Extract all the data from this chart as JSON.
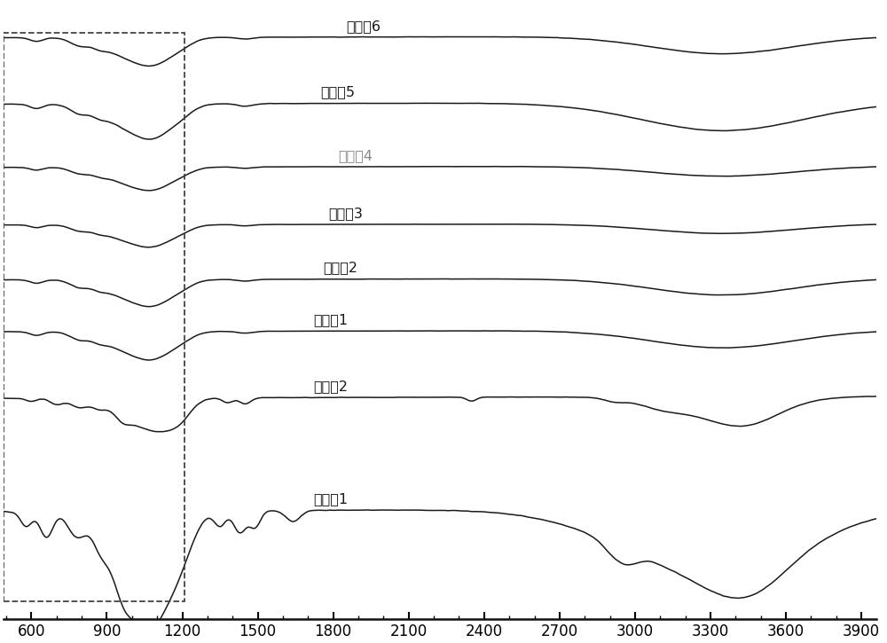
{
  "x_min": 490,
  "x_max": 3960,
  "x_ticks": [
    600,
    900,
    1200,
    1500,
    1800,
    2100,
    2400,
    2700,
    3000,
    3300,
    3600,
    3900
  ],
  "labels": [
    "实施例6",
    "实施例5",
    "实施例4",
    "实施例3",
    "实施例2",
    "实施例1",
    "对比例2",
    "对比例1"
  ],
  "label4_color": "#888888",
  "line_color": "#1a1a1a",
  "bg_color": "#ffffff",
  "offsets": [
    6.8,
    5.65,
    4.55,
    3.55,
    2.6,
    1.7,
    0.55,
    -1.4
  ],
  "figsize": [
    10.0,
    7.25
  ],
  "dpi": 100
}
